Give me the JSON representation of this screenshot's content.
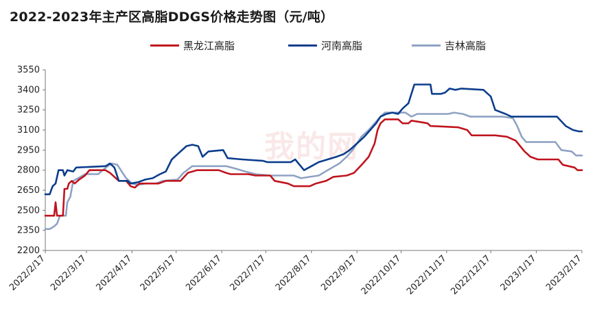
{
  "chart_data": {
    "type": "line",
    "title": "2022-2023年主产区高脂DDGS价格走势图（元/吨）",
    "ylim": [
      2200,
      3550
    ],
    "yticks": [
      2200,
      2350,
      2500,
      2650,
      2800,
      2950,
      3100,
      3250,
      3400,
      3550
    ],
    "x_range": [
      "2022/2/17",
      "2023/2/17"
    ],
    "xticks": [
      "2022/2/17",
      "2022/3/17",
      "2022/4/17",
      "2022/5/17",
      "2022/6/17",
      "2022/7/17",
      "2022/8/17",
      "2022/9/17",
      "2022/10/17",
      "2022/11/17",
      "2022/12/17",
      "2023/1/17",
      "2023/2/17"
    ],
    "grid": false,
    "legend_position": "top",
    "series": [
      {
        "name": "黑龙江高脂",
        "color": "#c0141e",
        "points": [
          [
            "2022/2/17",
            2460
          ],
          [
            "2022/2/21",
            2460
          ],
          [
            "2022/2/23",
            2460
          ],
          [
            "2022/2/24",
            2560
          ],
          [
            "2022/2/25",
            2460
          ],
          [
            "2022/3/1",
            2460
          ],
          [
            "2022/3/2",
            2660
          ],
          [
            "2022/3/4",
            2660
          ],
          [
            "2022/3/5",
            2700
          ],
          [
            "2022/3/7",
            2720
          ],
          [
            "2022/3/9",
            2700
          ],
          [
            "2022/3/12",
            2730
          ],
          [
            "2022/3/16",
            2760
          ],
          [
            "2022/3/19",
            2800
          ],
          [
            "2022/3/30",
            2800
          ],
          [
            "2022/4/2",
            2780
          ],
          [
            "2022/4/8",
            2720
          ],
          [
            "2022/4/13",
            2720
          ],
          [
            "2022/4/16",
            2680
          ],
          [
            "2022/4/19",
            2670
          ],
          [
            "2022/4/22",
            2700
          ],
          [
            "2022/5/5",
            2700
          ],
          [
            "2022/5/10",
            2720
          ],
          [
            "2022/5/20",
            2720
          ],
          [
            "2022/5/25",
            2780
          ],
          [
            "2022/5/31",
            2800
          ],
          [
            "2022/6/15",
            2800
          ],
          [
            "2022/6/20",
            2780
          ],
          [
            "2022/6/23",
            2770
          ],
          [
            "2022/7/5",
            2770
          ],
          [
            "2022/7/10",
            2760
          ],
          [
            "2022/7/20",
            2760
          ],
          [
            "2022/7/23",
            2720
          ],
          [
            "2022/8/1",
            2700
          ],
          [
            "2022/8/5",
            2680
          ],
          [
            "2022/8/16",
            2680
          ],
          [
            "2022/8/20",
            2700
          ],
          [
            "2022/8/27",
            2720
          ],
          [
            "2022/9/1",
            2750
          ],
          [
            "2022/9/10",
            2760
          ],
          [
            "2022/9/15",
            2780
          ],
          [
            "2022/9/21",
            2850
          ],
          [
            "2022/9/25",
            2900
          ],
          [
            "2022/9/29",
            3000
          ],
          [
            "2022/10/1",
            3100
          ],
          [
            "2022/10/3",
            3150
          ],
          [
            "2022/10/6",
            3180
          ],
          [
            "2022/10/15",
            3180
          ],
          [
            "2022/10/18",
            3150
          ],
          [
            "2022/10/22",
            3150
          ],
          [
            "2022/10/24",
            3170
          ],
          [
            "2022/10/30",
            3160
          ],
          [
            "2022/11/4",
            3150
          ],
          [
            "2022/11/6",
            3130
          ],
          [
            "2022/11/25",
            3120
          ],
          [
            "2022/12/1",
            3100
          ],
          [
            "2022/12/4",
            3060
          ],
          [
            "2022/12/20",
            3060
          ],
          [
            "2022/12/28",
            3050
          ],
          [
            "2023/1/3",
            3020
          ],
          [
            "2023/1/6",
            2980
          ],
          [
            "2023/1/9",
            2940
          ],
          [
            "2023/1/13",
            2900
          ],
          [
            "2023/1/18",
            2880
          ],
          [
            "2023/2/1",
            2880
          ],
          [
            "2023/2/4",
            2840
          ],
          [
            "2023/2/12",
            2820
          ],
          [
            "2023/2/14",
            2800
          ],
          [
            "2023/2/17",
            2800
          ]
        ]
      },
      {
        "name": "河南高脂",
        "color": "#0b3d8c",
        "points": [
          [
            "2022/2/17",
            2620
          ],
          [
            "2022/2/20",
            2620
          ],
          [
            "2022/2/22",
            2680
          ],
          [
            "2022/2/24",
            2700
          ],
          [
            "2022/2/26",
            2800
          ],
          [
            "2022/3/1",
            2800
          ],
          [
            "2022/3/2",
            2760
          ],
          [
            "2022/3/4",
            2800
          ],
          [
            "2022/3/8",
            2790
          ],
          [
            "2022/3/10",
            2820
          ],
          [
            "2022/3/30",
            2830
          ],
          [
            "2022/4/2",
            2850
          ],
          [
            "2022/4/5",
            2820
          ],
          [
            "2022/4/8",
            2720
          ],
          [
            "2022/4/14",
            2720
          ],
          [
            "2022/4/16",
            2700
          ],
          [
            "2022/4/21",
            2710
          ],
          [
            "2022/4/26",
            2730
          ],
          [
            "2022/5/1",
            2740
          ],
          [
            "2022/5/6",
            2770
          ],
          [
            "2022/5/10",
            2790
          ],
          [
            "2022/5/14",
            2880
          ],
          [
            "2022/5/18",
            2920
          ],
          [
            "2022/5/24",
            2980
          ],
          [
            "2022/5/28",
            2990
          ],
          [
            "2022/6/1",
            2980
          ],
          [
            "2022/6/4",
            2900
          ],
          [
            "2022/6/8",
            2940
          ],
          [
            "2022/6/18",
            2950
          ],
          [
            "2022/6/21",
            2890
          ],
          [
            "2022/7/1",
            2880
          ],
          [
            "2022/7/15",
            2870
          ],
          [
            "2022/7/18",
            2860
          ],
          [
            "2022/8/3",
            2860
          ],
          [
            "2022/8/6",
            2880
          ],
          [
            "2022/8/9",
            2840
          ],
          [
            "2022/8/12",
            2800
          ],
          [
            "2022/8/17",
            2830
          ],
          [
            "2022/8/22",
            2860
          ],
          [
            "2022/8/28",
            2880
          ],
          [
            "2022/9/3",
            2900
          ],
          [
            "2022/9/8",
            2920
          ],
          [
            "2022/9/12",
            2950
          ],
          [
            "2022/9/17",
            3000
          ],
          [
            "2022/9/22",
            3050
          ],
          [
            "2022/9/26",
            3100
          ],
          [
            "2022/9/30",
            3150
          ],
          [
            "2022/10/3",
            3200
          ],
          [
            "2022/10/7",
            3220
          ],
          [
            "2022/10/11",
            3230
          ],
          [
            "2022/10/15",
            3220
          ],
          [
            "2022/10/18",
            3260
          ],
          [
            "2022/10/22",
            3300
          ],
          [
            "2022/10/26",
            3440
          ],
          [
            "2022/11/6",
            3440
          ],
          [
            "2022/11/7",
            3370
          ],
          [
            "2022/11/13",
            3370
          ],
          [
            "2022/11/16",
            3380
          ],
          [
            "2022/11/19",
            3410
          ],
          [
            "2022/11/23",
            3400
          ],
          [
            "2022/11/27",
            3410
          ],
          [
            "2022/12/12",
            3400
          ],
          [
            "2022/12/17",
            3350
          ],
          [
            "2022/12/20",
            3250
          ],
          [
            "2022/12/27",
            3220
          ],
          [
            "2022/12/31",
            3200
          ],
          [
            "2023/1/28",
            3200
          ],
          [
            "2023/1/31",
            3200
          ],
          [
            "2023/2/6",
            3130
          ],
          [
            "2023/2/11",
            3100
          ],
          [
            "2023/2/15",
            3090
          ],
          [
            "2023/2/17",
            3090
          ]
        ]
      },
      {
        "name": "吉林高脂",
        "color": "#8ea2c4",
        "points": [
          [
            "2022/2/17",
            2360
          ],
          [
            "2022/2/20",
            2360
          ],
          [
            "2022/2/23",
            2380
          ],
          [
            "2022/2/25",
            2400
          ],
          [
            "2022/2/27",
            2460
          ],
          [
            "2022/3/3",
            2460
          ],
          [
            "2022/3/4",
            2560
          ],
          [
            "2022/3/6",
            2600
          ],
          [
            "2022/3/8",
            2720
          ],
          [
            "2022/3/13",
            2750
          ],
          [
            "2022/3/16",
            2770
          ],
          [
            "2022/3/25",
            2770
          ],
          [
            "2022/3/28",
            2800
          ],
          [
            "2022/4/3",
            2850
          ],
          [
            "2022/4/7",
            2840
          ],
          [
            "2022/4/13",
            2740
          ],
          [
            "2022/4/17",
            2700
          ],
          [
            "2022/4/21",
            2690
          ],
          [
            "2022/4/26",
            2700
          ],
          [
            "2022/5/3",
            2700
          ],
          [
            "2022/5/8",
            2720
          ],
          [
            "2022/5/18",
            2730
          ],
          [
            "2022/5/22",
            2780
          ],
          [
            "2022/5/28",
            2830
          ],
          [
            "2022/6/20",
            2830
          ],
          [
            "2022/6/27",
            2810
          ],
          [
            "2022/7/3",
            2790
          ],
          [
            "2022/7/10",
            2770
          ],
          [
            "2022/7/20",
            2760
          ],
          [
            "2022/8/5",
            2760
          ],
          [
            "2022/8/10",
            2740
          ],
          [
            "2022/8/16",
            2750
          ],
          [
            "2022/8/22",
            2760
          ],
          [
            "2022/8/28",
            2800
          ],
          [
            "2022/9/5",
            2850
          ],
          [
            "2022/9/10",
            2900
          ],
          [
            "2022/9/14",
            2950
          ],
          [
            "2022/9/20",
            3050
          ],
          [
            "2022/9/25",
            3100
          ],
          [
            "2022/9/29",
            3150
          ],
          [
            "2022/10/3",
            3200
          ],
          [
            "2022/10/6",
            3230
          ],
          [
            "2022/10/20",
            3230
          ],
          [
            "2022/10/24",
            3200
          ],
          [
            "2022/10/28",
            3220
          ],
          [
            "2022/11/18",
            3220
          ],
          [
            "2022/11/22",
            3230
          ],
          [
            "2022/11/28",
            3220
          ],
          [
            "2022/12/3",
            3200
          ],
          [
            "2022/12/25",
            3200
          ],
          [
            "2023/1/1",
            3190
          ],
          [
            "2023/1/4",
            3130
          ],
          [
            "2023/1/7",
            3050
          ],
          [
            "2023/1/10",
            3010
          ],
          [
            "2023/1/30",
            3010
          ],
          [
            "2023/2/3",
            2950
          ],
          [
            "2023/2/10",
            2940
          ],
          [
            "2023/2/13",
            2910
          ],
          [
            "2023/2/17",
            2910
          ]
        ]
      }
    ]
  }
}
